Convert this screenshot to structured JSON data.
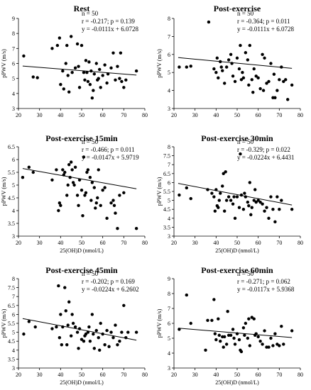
{
  "chart_data": [
    {
      "type": "scatter",
      "title": "Rest",
      "xlabel": "",
      "ylabel": "pPWV (m/s)",
      "xlim": [
        20,
        80
      ],
      "ylim": [
        3,
        9
      ],
      "xticks": [
        "20",
        "30",
        "40",
        "50",
        "60",
        "70",
        "80"
      ],
      "yticks": [
        "3",
        "4",
        "5",
        "6",
        "7",
        "8",
        "9"
      ],
      "annotations": [
        "n = 50",
        "r = -0.217; p = 0.139",
        "y = -0.0111x + 6.0728"
      ],
      "trendline": {
        "slope": -0.0111,
        "intercept": 6.0728
      },
      "points": [
        [
          22.5,
          6.5
        ],
        [
          27,
          5.1
        ],
        [
          29,
          5.05
        ],
        [
          36,
          7.0
        ],
        [
          38.5,
          7.2
        ],
        [
          39.5,
          7.7
        ],
        [
          40,
          4.6
        ],
        [
          41,
          5.5
        ],
        [
          41.5,
          4.3
        ],
        [
          42.5,
          6.0
        ],
        [
          43,
          7.2
        ],
        [
          43.5,
          5.2
        ],
        [
          44,
          4.1
        ],
        [
          45,
          7.8
        ],
        [
          45.5,
          5.4
        ],
        [
          47,
          5.7
        ],
        [
          48,
          7.3
        ],
        [
          48.5,
          5.8
        ],
        [
          49,
          4.4
        ],
        [
          50,
          7.2
        ],
        [
          51,
          5.4
        ],
        [
          51.5,
          4.9
        ],
        [
          52,
          6.2
        ],
        [
          52.5,
          5.4
        ],
        [
          53,
          4.8
        ],
        [
          53.5,
          6.1
        ],
        [
          54,
          4.6
        ],
        [
          54.5,
          5.5
        ],
        [
          55,
          3.7
        ],
        [
          55.5,
          4.2
        ],
        [
          56,
          5.3
        ],
        [
          57,
          6.0
        ],
        [
          57.5,
          4.9
        ],
        [
          58,
          5.0
        ],
        [
          58.5,
          5.6
        ],
        [
          59,
          4.4
        ],
        [
          60,
          5.2
        ],
        [
          61,
          5.9
        ],
        [
          62,
          4.7
        ],
        [
          62.5,
          5.3
        ],
        [
          64,
          5.7
        ],
        [
          65,
          6.7
        ],
        [
          66,
          4.9
        ],
        [
          67,
          5.8
        ],
        [
          68,
          5.0
        ],
        [
          68.5,
          6.7
        ],
        [
          69,
          4.8
        ],
        [
          70,
          4.4
        ],
        [
          71,
          4.9
        ],
        [
          76,
          5.5
        ]
      ]
    },
    {
      "type": "scatter",
      "title": "Post-exercise",
      "xlabel": "",
      "ylabel": "pPWV (m/s)",
      "xlim": [
        20,
        80
      ],
      "ylim": [
        3,
        8
      ],
      "xticks": [
        "20",
        "30",
        "40",
        "50",
        "60",
        "70",
        "80"
      ],
      "yticks": [
        "3",
        "4",
        "5",
        "6",
        "7",
        "8"
      ],
      "annotations": [
        "n = 50",
        "r = -0.364; p = 0.011",
        "y = -0.0111x + 6.0728"
      ],
      "trendline": {
        "slope": -0.0111,
        "intercept": 6.0728
      },
      "points": [
        [
          22.5,
          5.3
        ],
        [
          26,
          5.3
        ],
        [
          28,
          5.35
        ],
        [
          36.5,
          7.8
        ],
        [
          39,
          5.2
        ],
        [
          40,
          5.0
        ],
        [
          40.5,
          5.8
        ],
        [
          41,
          4.7
        ],
        [
          42,
          5.6
        ],
        [
          42.5,
          5.3
        ],
        [
          43,
          5.1
        ],
        [
          44,
          4.4
        ],
        [
          45,
          5.3
        ],
        [
          46,
          5.7
        ],
        [
          47,
          6.0
        ],
        [
          47.5,
          5.5
        ],
        [
          48,
          4.8
        ],
        [
          49,
          4.5
        ],
        [
          50,
          5.8
        ],
        [
          51,
          5.2
        ],
        [
          51.5,
          6.5
        ],
        [
          52,
          4.6
        ],
        [
          52.5,
          5.0
        ],
        [
          53,
          4.7
        ],
        [
          54,
          6.1
        ],
        [
          55,
          5.7
        ],
        [
          55.5,
          4.3
        ],
        [
          56,
          6.5
        ],
        [
          57,
          4.6
        ],
        [
          57.5,
          3.9
        ],
        [
          58,
          5.2
        ],
        [
          59,
          4.8
        ],
        [
          60,
          4.7
        ],
        [
          61,
          4.1
        ],
        [
          62,
          6.0
        ],
        [
          63,
          5.8
        ],
        [
          64,
          4.4
        ],
        [
          65,
          4.5
        ],
        [
          66,
          5.5
        ],
        [
          67,
          3.6
        ],
        [
          67.5,
          4.9
        ],
        [
          68,
          3.6
        ],
        [
          69,
          4.0
        ],
        [
          70,
          4.6
        ],
        [
          71,
          5.3
        ],
        [
          72,
          4.5
        ],
        [
          73,
          4.6
        ],
        [
          74,
          3.5
        ],
        [
          76,
          4.3
        ],
        [
          62.5,
          4.0
        ]
      ]
    },
    {
      "type": "scatter",
      "title": "Post-exercise 15min",
      "xlabel": "25(OH)D (nmol/L)",
      "ylabel": "pPWV (m/s)",
      "xlim": [
        20,
        80
      ],
      "ylim": [
        3,
        6.5
      ],
      "xticks": [
        "20",
        "30",
        "40",
        "50",
        "60",
        "70",
        "80"
      ],
      "yticks": [
        "3",
        "3.5",
        "4",
        "4.5",
        "5",
        "5.5",
        "6",
        "6.5"
      ],
      "annotations": [
        "n = 50",
        "r = -0.466; p = 0.011",
        "y = -0.0147x + 5.9719"
      ],
      "trendline": {
        "slope": -0.0147,
        "intercept": 5.9719
      },
      "points": [
        [
          22,
          5.3
        ],
        [
          25,
          5.7
        ],
        [
          27,
          5.5
        ],
        [
          36,
          5.2
        ],
        [
          38,
          5.6
        ],
        [
          39,
          4.0
        ],
        [
          39.5,
          4.3
        ],
        [
          40,
          4.2
        ],
        [
          41,
          5.6
        ],
        [
          41.5,
          5.4
        ],
        [
          42,
          5.5
        ],
        [
          43,
          4.6
        ],
        [
          43.5,
          5.0
        ],
        [
          44,
          5.8
        ],
        [
          44.5,
          5.3
        ],
        [
          45,
          5.9
        ],
        [
          45.5,
          5.6
        ],
        [
          46,
          5.1
        ],
        [
          46.5,
          5.0
        ],
        [
          47,
          5.7
        ],
        [
          48,
          4.6
        ],
        [
          48.5,
          4.2
        ],
        [
          49,
          5.2
        ],
        [
          50,
          4.8
        ],
        [
          50.5,
          3.8
        ],
        [
          51,
          6.1
        ],
        [
          51.5,
          4.6
        ],
        [
          52,
          4.7
        ],
        [
          52.5,
          5.5
        ],
        [
          53,
          5.6
        ],
        [
          54,
          5.3
        ],
        [
          54.5,
          4.4
        ],
        [
          55,
          5.1
        ],
        [
          56,
          4.9
        ],
        [
          56.5,
          4.1
        ],
        [
          57,
          4.3
        ],
        [
          57.5,
          4.5
        ],
        [
          58,
          5.6
        ],
        [
          59,
          4.2
        ],
        [
          60,
          4.8
        ],
        [
          61,
          4.9
        ],
        [
          62,
          3.7
        ],
        [
          64,
          4.3
        ],
        [
          65,
          4.4
        ],
        [
          65.5,
          4.2
        ],
        [
          66,
          3.9
        ],
        [
          67,
          3.3
        ],
        [
          68,
          4.6
        ],
        [
          70,
          4.7
        ],
        [
          76,
          3.3
        ]
      ]
    },
    {
      "type": "scatter",
      "title": "Post-exercise 30min",
      "xlabel": "25(OH)D (nmol/L)",
      "ylabel": "pPWV (m/s)",
      "xlim": [
        20,
        80
      ],
      "ylim": [
        3,
        8
      ],
      "xticks": [
        "20",
        "30",
        "40",
        "50",
        "60",
        "70",
        "80"
      ],
      "yticks": [
        "3",
        "3.5",
        "4",
        "4.5",
        "5",
        "5.5",
        "6",
        "6.5",
        "7",
        "7.5",
        "8"
      ],
      "annotations": [
        "n = 50",
        "r = -0.329; p = 0.022",
        "y = -0.0224x + 6.4431"
      ],
      "trendline": {
        "slope": -0.0224,
        "intercept": 6.4431
      },
      "points": [
        [
          22.5,
          5.3
        ],
        [
          26,
          5.7
        ],
        [
          28,
          5.1
        ],
        [
          36,
          5.6
        ],
        [
          38,
          5.4
        ],
        [
          39,
          5.2
        ],
        [
          39.5,
          4.4
        ],
        [
          40,
          5.6
        ],
        [
          40.5,
          4.7
        ],
        [
          41,
          4.6
        ],
        [
          41.5,
          5.0
        ],
        [
          42,
          5.4
        ],
        [
          43,
          5.8
        ],
        [
          43.5,
          6.5
        ],
        [
          44,
          4.4
        ],
        [
          44.5,
          6.6
        ],
        [
          45,
          5.0
        ],
        [
          46,
          5.2
        ],
        [
          47,
          5.0
        ],
        [
          48,
          4.8
        ],
        [
          48.5,
          5.2
        ],
        [
          49,
          4.0
        ],
        [
          50,
          5.2
        ],
        [
          51,
          4.6
        ],
        [
          51.5,
          7.6
        ],
        [
          52,
          5.3
        ],
        [
          53,
          4.5
        ],
        [
          53.5,
          5.4
        ],
        [
          54,
          5.2
        ],
        [
          55,
          4.9
        ],
        [
          55.5,
          4.7
        ],
        [
          56,
          6.0
        ],
        [
          56.5,
          4.2
        ],
        [
          57,
          4.6
        ],
        [
          58,
          5.0
        ],
        [
          58.5,
          5.6
        ],
        [
          59,
          4.9
        ],
        [
          60,
          5.0
        ],
        [
          61,
          4.9
        ],
        [
          62,
          4.8
        ],
        [
          63,
          4.4
        ],
        [
          64,
          4.6
        ],
        [
          65,
          4.0
        ],
        [
          66,
          5.2
        ],
        [
          67,
          4.5
        ],
        [
          68,
          3.8
        ],
        [
          69,
          5.2
        ],
        [
          70,
          4.5
        ],
        [
          71,
          5.0
        ],
        [
          76,
          4.5
        ]
      ]
    },
    {
      "type": "scatter",
      "title": "Post-exercise 45min",
      "xlabel": "25(OH)D (nmol/L)",
      "ylabel": "pPWV (m/s)",
      "xlim": [
        20,
        80
      ],
      "ylim": [
        3,
        8
      ],
      "xticks": [
        "20",
        "30",
        "40",
        "50",
        "60",
        "70",
        "80"
      ],
      "yticks": [
        "3",
        "3.5",
        "4",
        "4.5",
        "5",
        "5.5",
        "6",
        "6.5",
        "7",
        "7.5",
        "8"
      ],
      "annotations": [
        "n = 50",
        "r = -0.202; p = 0.169",
        "y = -0.0224x + 6.2602"
      ],
      "trendline": {
        "slope": -0.0224,
        "intercept": 6.2602
      },
      "points": [
        [
          22.5,
          4.9
        ],
        [
          25,
          5.6
        ],
        [
          28,
          5.3
        ],
        [
          36,
          5.2
        ],
        [
          38,
          5.3
        ],
        [
          39,
          7.6
        ],
        [
          39.5,
          4.7
        ],
        [
          40,
          6.0
        ],
        [
          40.5,
          4.3
        ],
        [
          41,
          5.3
        ],
        [
          42,
          7.5
        ],
        [
          42.5,
          6.2
        ],
        [
          43,
          4.3
        ],
        [
          43.5,
          5.4
        ],
        [
          44,
          6.7
        ],
        [
          45,
          4.8
        ],
        [
          45.5,
          6.0
        ],
        [
          46,
          5.5
        ],
        [
          47,
          5.3
        ],
        [
          48,
          5.0
        ],
        [
          48.5,
          4.1
        ],
        [
          49,
          5.2
        ],
        [
          50,
          4.6
        ],
        [
          51,
          4.5
        ],
        [
          51.5,
          4.8
        ],
        [
          52,
          4.9
        ],
        [
          53,
          5.0
        ],
        [
          53.5,
          5.3
        ],
        [
          54,
          4.5
        ],
        [
          55,
          6.0
        ],
        [
          55.5,
          4.9
        ],
        [
          56,
          4.1
        ],
        [
          57,
          5.1
        ],
        [
          58,
          4.7
        ],
        [
          58.5,
          4.0
        ],
        [
          59,
          5.5
        ],
        [
          60,
          4.9
        ],
        [
          61,
          4.3
        ],
        [
          62,
          5.1
        ],
        [
          63,
          4.2
        ],
        [
          64,
          5.0
        ],
        [
          65,
          4.7
        ],
        [
          66,
          5.4
        ],
        [
          67,
          4.3
        ],
        [
          68,
          4.5
        ],
        [
          69,
          5.0
        ],
        [
          70,
          6.5
        ],
        [
          71,
          4.7
        ],
        [
          72,
          5.0
        ],
        [
          76,
          5.0
        ]
      ]
    },
    {
      "type": "scatter",
      "title": "Post-exercise 60min",
      "xlabel": "25(OH)D (nmol/L)",
      "ylabel": "pPWV (m/s)",
      "xlim": [
        20,
        80
      ],
      "ylim": [
        3,
        9
      ],
      "xticks": [
        "20",
        "30",
        "40",
        "50",
        "60",
        "70",
        "80"
      ],
      "yticks": [
        "3",
        "4",
        "5",
        "6",
        "7",
        "8",
        "9"
      ],
      "annotations": [
        "n = 50",
        "r = -0.271; p = 0.062",
        "y = -0.0117x + 5.9368"
      ],
      "trendline": {
        "slope": -0.0117,
        "intercept": 5.9368
      },
      "points": [
        [
          22.5,
          5.6
        ],
        [
          26,
          7.9
        ],
        [
          28,
          6.0
        ],
        [
          36,
          6.2
        ],
        [
          38,
          6.2
        ],
        [
          39,
          7.6
        ],
        [
          39.5,
          5.3
        ],
        [
          40,
          4.9
        ],
        [
          41,
          6.3
        ],
        [
          41.5,
          5.2
        ],
        [
          42,
          4.8
        ],
        [
          43,
          5.1
        ],
        [
          43.5,
          4.4
        ],
        [
          44,
          5.1
        ],
        [
          45,
          4.6
        ],
        [
          45.5,
          6.8
        ],
        [
          46,
          5.2
        ],
        [
          47,
          5.2
        ],
        [
          48,
          5.6
        ],
        [
          48.5,
          5.0
        ],
        [
          49,
          4.6
        ],
        [
          50,
          5.3
        ],
        [
          51,
          4.9
        ],
        [
          51.5,
          4.2
        ],
        [
          52,
          4.1
        ],
        [
          53,
          5.7
        ],
        [
          53.5,
          5.2
        ],
        [
          54,
          6.0
        ],
        [
          55,
          5.0
        ],
        [
          55.5,
          6.3
        ],
        [
          56,
          4.5
        ],
        [
          57,
          6.4
        ],
        [
          58,
          6.3
        ],
        [
          58.5,
          5.2
        ],
        [
          59,
          5.3
        ],
        [
          60,
          5.1
        ],
        [
          61,
          4.8
        ],
        [
          62,
          4.6
        ],
        [
          63,
          5.5
        ],
        [
          64,
          4.4
        ],
        [
          65,
          4.4
        ],
        [
          66,
          5.0
        ],
        [
          67,
          4.5
        ],
        [
          68,
          5.3
        ],
        [
          69,
          4.6
        ],
        [
          70,
          4.5
        ],
        [
          71,
          5.8
        ],
        [
          72,
          4.6
        ],
        [
          76,
          5.5
        ],
        [
          35,
          4.2
        ]
      ]
    }
  ]
}
